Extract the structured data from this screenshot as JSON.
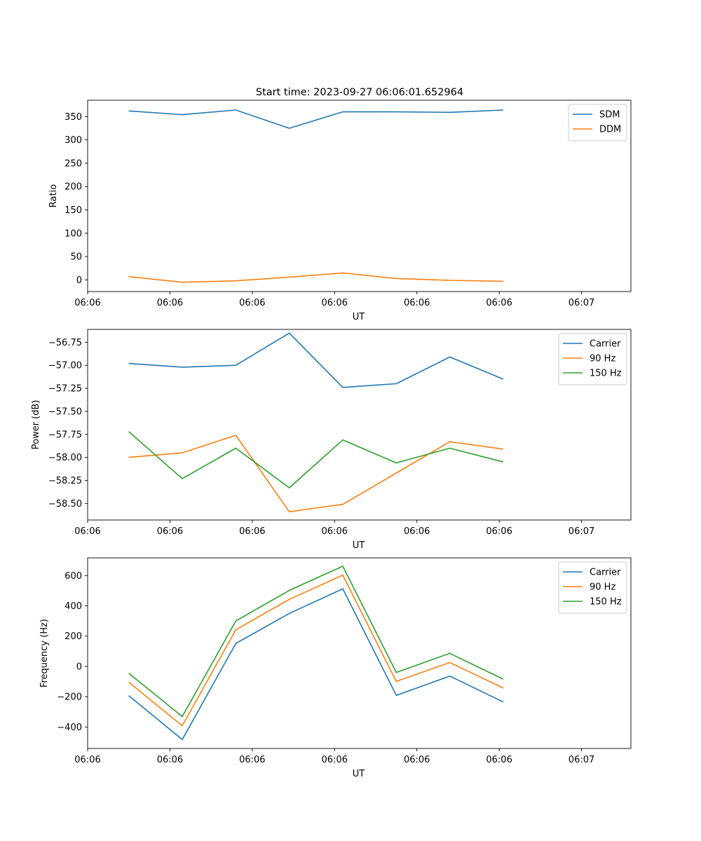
{
  "figure": {
    "title": "Start time: 2023-09-27 06:06:01.652964"
  },
  "chart_data": [
    {
      "type": "line",
      "title": "Start time: 2023-09-27 06:06:01.652964",
      "xlabel": "UT",
      "ylabel": "Ratio",
      "x_tick_labels": [
        "06:06",
        "06:06",
        "06:06",
        "06:06",
        "06:06",
        "06:06",
        "06:07"
      ],
      "xlim": [
        0,
        3.3
      ],
      "x_ticks": [
        0,
        0.5,
        1,
        1.5,
        2,
        2.5,
        3
      ],
      "x": [
        0.25,
        0.575,
        0.9,
        1.225,
        1.55,
        1.875,
        2.2,
        2.525
      ],
      "ylim": [
        -25,
        385
      ],
      "y_ticks": [
        0,
        50,
        100,
        150,
        200,
        250,
        300,
        350
      ],
      "y_tick_labels": [
        "0",
        "50",
        "100",
        "150",
        "200",
        "250",
        "300",
        "350"
      ],
      "legend_position": "top-right",
      "series": [
        {
          "name": "SDM",
          "color": "#1f77b4",
          "values": [
            362,
            354,
            364,
            325,
            360,
            360,
            359,
            364
          ]
        },
        {
          "name": "DDM",
          "color": "#ff7f0e",
          "values": [
            7,
            -5,
            -2,
            6,
            15,
            3,
            -1,
            -3
          ]
        }
      ]
    },
    {
      "type": "line",
      "xlabel": "UT",
      "ylabel": "Power (dB)",
      "x_tick_labels": [
        "06:06",
        "06:06",
        "06:06",
        "06:06",
        "06:06",
        "06:06",
        "06:07"
      ],
      "xlim": [
        0,
        3.3
      ],
      "x_ticks": [
        0,
        0.5,
        1,
        1.5,
        2,
        2.5,
        3
      ],
      "x": [
        0.25,
        0.575,
        0.9,
        1.225,
        1.55,
        1.875,
        2.2,
        2.525
      ],
      "ylim": [
        -58.68,
        -56.61
      ],
      "y_ticks": [
        -58.5,
        -58.25,
        -58.0,
        -57.75,
        -57.5,
        -57.25,
        -57.0,
        -56.75
      ],
      "y_tick_labels": [
        "−58.50",
        "−58.25",
        "−58.00",
        "−57.75",
        "−57.50",
        "−57.25",
        "−57.00",
        "−56.75"
      ],
      "legend_position": "top-right",
      "series": [
        {
          "name": "Carrier",
          "color": "#1f77b4",
          "values": [
            -56.98,
            -57.02,
            -57.0,
            -56.65,
            -57.24,
            -57.2,
            -56.91,
            -57.15
          ]
        },
        {
          "name": "90 Hz",
          "color": "#ff7f0e",
          "values": [
            -58.0,
            -57.95,
            -57.76,
            -58.59,
            -58.51,
            -58.17,
            -57.83,
            -57.91
          ]
        },
        {
          "name": "150 Hz",
          "color": "#2ca02c",
          "values": [
            -57.72,
            -58.23,
            -57.9,
            -58.33,
            -57.81,
            -58.06,
            -57.9,
            -58.05
          ]
        }
      ]
    },
    {
      "type": "line",
      "xlabel": "UT",
      "ylabel": "Frequency (Hz)",
      "x_tick_labels": [
        "06:06",
        "06:06",
        "06:06",
        "06:06",
        "06:06",
        "06:06",
        "06:07"
      ],
      "xlim": [
        0,
        3.3
      ],
      "x_ticks": [
        0,
        0.5,
        1,
        1.5,
        2,
        2.5,
        3
      ],
      "x": [
        0.25,
        0.575,
        0.9,
        1.225,
        1.55,
        1.875,
        2.2,
        2.525
      ],
      "ylim": [
        -542,
        717
      ],
      "y_ticks": [
        -400,
        -200,
        0,
        200,
        400,
        600
      ],
      "y_tick_labels": [
        "−400",
        "−200",
        "0",
        "200",
        "400",
        "600"
      ],
      "legend_position": "top-right",
      "series": [
        {
          "name": "Carrier",
          "color": "#1f77b4",
          "values": [
            -193,
            -483,
            152,
            350,
            513,
            -191,
            -64,
            -235
          ]
        },
        {
          "name": "90 Hz",
          "color": "#ff7f0e",
          "values": [
            -104,
            -392,
            242,
            443,
            603,
            -99,
            26,
            -143
          ]
        },
        {
          "name": "150 Hz",
          "color": "#2ca02c",
          "values": [
            -45,
            -331,
            300,
            502,
            662,
            -40,
            86,
            -84
          ]
        }
      ]
    }
  ]
}
